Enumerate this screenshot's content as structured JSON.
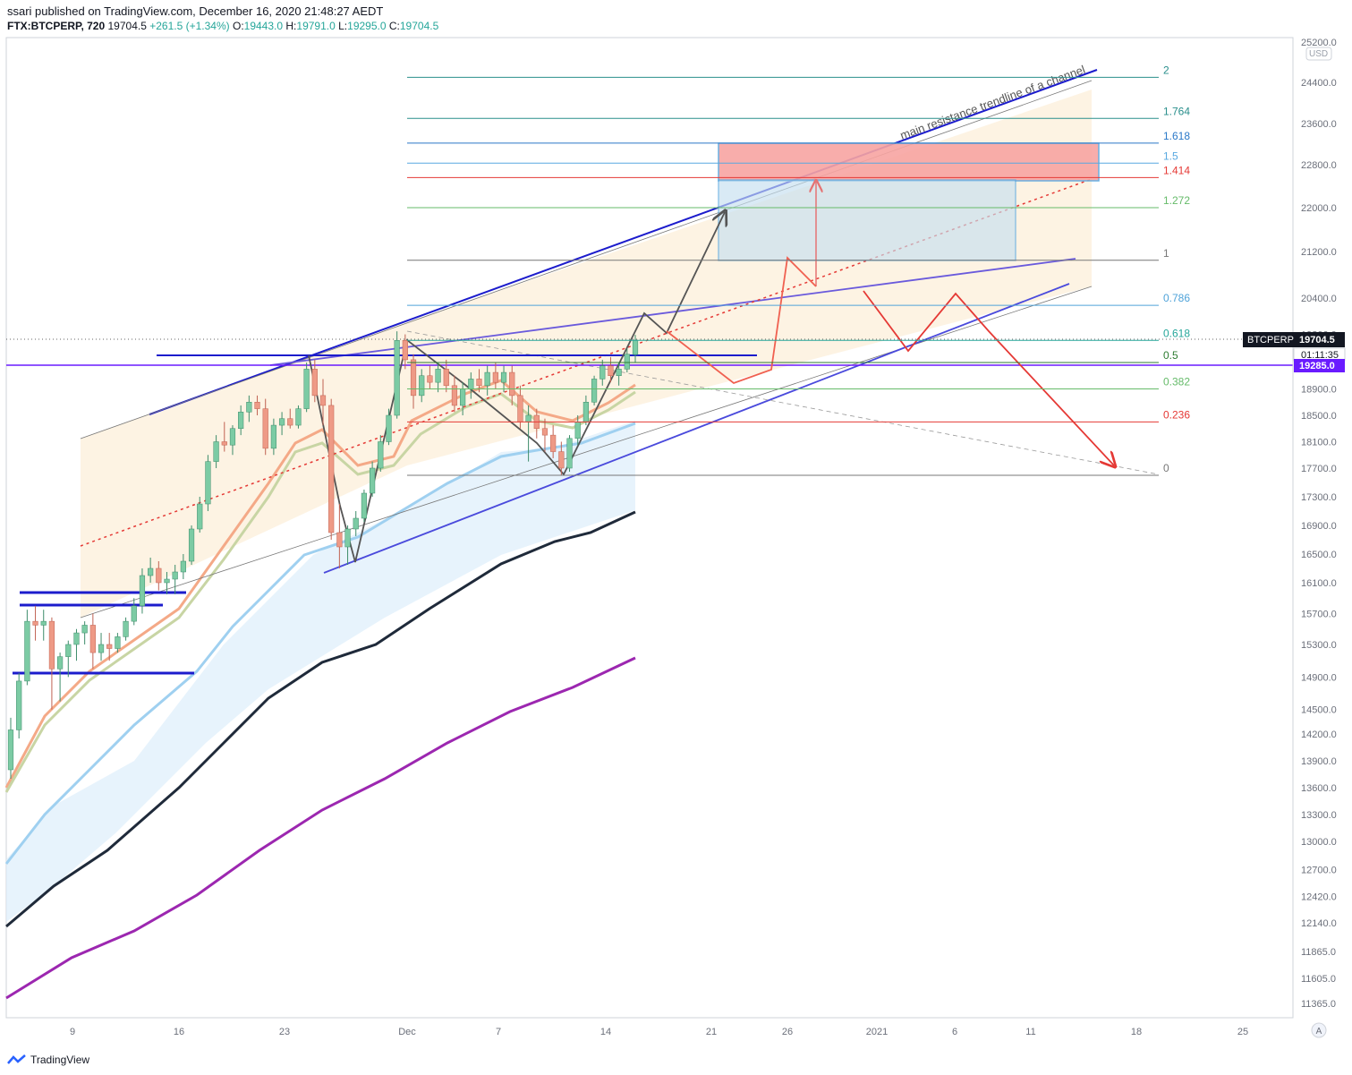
{
  "header": {
    "published": "ssari published on TradingView.com, December 16, 2020 21:48:27 AEDT",
    "symbol": "FTX:BTCPERP, 720",
    "last": "19704.5",
    "change": "+261.5 (+1.34%)",
    "open_label": "O:",
    "open": "19443.0",
    "high_label": "H:",
    "high": "19791.0",
    "low_label": "L:",
    "low": "19295.0",
    "close_label": "C:",
    "close": "19704.5"
  },
  "footer": {
    "brand": "TradingView"
  },
  "chart_data": {
    "type": "candlestick",
    "currency": "USD",
    "y_ticks": [
      "25200.0",
      "24400.0",
      "23600.0",
      "22800.0",
      "22000.0",
      "21200.0",
      "20400.0",
      "19800.0",
      "18900.0",
      "18500.0",
      "18100.0",
      "17700.0",
      "17300.0",
      "16900.0",
      "16500.0",
      "16100.0",
      "15700.0",
      "15300.0",
      "14900.0",
      "14500.0",
      "14200.0",
      "13900.0",
      "13600.0",
      "13300.0",
      "13000.0",
      "12700.0",
      "12420.0",
      "12140.0",
      "11865.0",
      "11605.0",
      "11365.0"
    ],
    "x_ticks": [
      "9",
      "16",
      "23",
      "Dec",
      "7",
      "14",
      "21",
      "26",
      "2021",
      "6",
      "11",
      "18",
      "25"
    ],
    "price_label": {
      "symbol": "BTCPERP",
      "value": "19704.5",
      "countdown": "01:11:35"
    },
    "line_label": {
      "value": "19285.0",
      "color": "#6a1bff"
    },
    "fib_levels": [
      {
        "level": "2",
        "price": 24500,
        "color": "#2a8f8c"
      },
      {
        "level": "1.764",
        "price": 23700,
        "color": "#2a8f8c"
      },
      {
        "level": "1.618",
        "price": 23220,
        "color": "#2a78c8"
      },
      {
        "level": "1.5",
        "price": 22830,
        "color": "#58a8e0"
      },
      {
        "level": "1.414",
        "price": 22560,
        "color": "#e53935"
      },
      {
        "level": "1.272",
        "price": 22000,
        "color": "#66bb6a"
      },
      {
        "level": "1",
        "price": 21050,
        "color": "#777777"
      },
      {
        "level": "0.786",
        "price": 20280,
        "color": "#4fa3d9"
      },
      {
        "level": "0.618",
        "price": 19700,
        "color": "#26a69a"
      },
      {
        "level": "0.5",
        "price": 19300,
        "color": "#2e7d32"
      },
      {
        "level": "0.382",
        "price": 18900,
        "color": "#66bb6a"
      },
      {
        "level": "0.236",
        "price": 18400,
        "color": "#e53935"
      },
      {
        "level": "0",
        "price": 17600,
        "color": "#777777"
      }
    ],
    "annotation": "main resistance trendline of a channel",
    "candles": [
      {
        "o": 13800,
        "h": 14400,
        "l": 13700,
        "c": 14250
      },
      {
        "o": 14250,
        "h": 14950,
        "l": 14150,
        "c": 14850
      },
      {
        "o": 14850,
        "h": 15750,
        "l": 14800,
        "c": 15600
      },
      {
        "o": 15600,
        "h": 15800,
        "l": 15350,
        "c": 15550
      },
      {
        "o": 15550,
        "h": 15750,
        "l": 15350,
        "c": 15600
      },
      {
        "o": 15600,
        "h": 15650,
        "l": 14500,
        "c": 15000
      },
      {
        "o": 15000,
        "h": 15200,
        "l": 14600,
        "c": 15150
      },
      {
        "o": 15150,
        "h": 15350,
        "l": 14900,
        "c": 15300
      },
      {
        "o": 15300,
        "h": 15500,
        "l": 15100,
        "c": 15450
      },
      {
        "o": 15450,
        "h": 15600,
        "l": 15300,
        "c": 15550
      },
      {
        "o": 15550,
        "h": 15700,
        "l": 15000,
        "c": 15200
      },
      {
        "o": 15200,
        "h": 15450,
        "l": 15100,
        "c": 15300
      },
      {
        "o": 15300,
        "h": 15450,
        "l": 15100,
        "c": 15250
      },
      {
        "o": 15250,
        "h": 15450,
        "l": 15200,
        "c": 15400
      },
      {
        "o": 15400,
        "h": 15650,
        "l": 15350,
        "c": 15600
      },
      {
        "o": 15600,
        "h": 15900,
        "l": 15550,
        "c": 15800
      },
      {
        "o": 15800,
        "h": 16300,
        "l": 15700,
        "c": 16200
      },
      {
        "o": 16200,
        "h": 16450,
        "l": 16100,
        "c": 16300
      },
      {
        "o": 16300,
        "h": 16400,
        "l": 16000,
        "c": 16100
      },
      {
        "o": 16100,
        "h": 16250,
        "l": 15950,
        "c": 16150
      },
      {
        "o": 16150,
        "h": 16350,
        "l": 15950,
        "c": 16250
      },
      {
        "o": 16250,
        "h": 16500,
        "l": 16150,
        "c": 16400
      },
      {
        "o": 16400,
        "h": 16900,
        "l": 16350,
        "c": 16850
      },
      {
        "o": 16850,
        "h": 17300,
        "l": 16800,
        "c": 17200
      },
      {
        "o": 17200,
        "h": 17900,
        "l": 17100,
        "c": 17800
      },
      {
        "o": 17800,
        "h": 18200,
        "l": 17700,
        "c": 18100
      },
      {
        "o": 18100,
        "h": 18400,
        "l": 17950,
        "c": 18050
      },
      {
        "o": 18050,
        "h": 18350,
        "l": 17900,
        "c": 18300
      },
      {
        "o": 18300,
        "h": 18650,
        "l": 18200,
        "c": 18550
      },
      {
        "o": 18550,
        "h": 18800,
        "l": 18400,
        "c": 18700
      },
      {
        "o": 18700,
        "h": 18800,
        "l": 18500,
        "c": 18600
      },
      {
        "o": 18600,
        "h": 18750,
        "l": 17900,
        "c": 18000
      },
      {
        "o": 18000,
        "h": 18450,
        "l": 17900,
        "c": 18350
      },
      {
        "o": 18350,
        "h": 18550,
        "l": 18200,
        "c": 18450
      },
      {
        "o": 18450,
        "h": 18600,
        "l": 18300,
        "c": 18350
      },
      {
        "o": 18350,
        "h": 18650,
        "l": 18300,
        "c": 18600
      },
      {
        "o": 18600,
        "h": 19300,
        "l": 18550,
        "c": 19200
      },
      {
        "o": 19200,
        "h": 19350,
        "l": 18700,
        "c": 18800
      },
      {
        "o": 18800,
        "h": 19050,
        "l": 18350,
        "c": 18650
      },
      {
        "o": 18650,
        "h": 18750,
        "l": 16700,
        "c": 16800
      },
      {
        "o": 16800,
        "h": 17200,
        "l": 16300,
        "c": 16600
      },
      {
        "o": 16600,
        "h": 16900,
        "l": 16350,
        "c": 16850
      },
      {
        "o": 16850,
        "h": 17100,
        "l": 16750,
        "c": 17000
      },
      {
        "o": 17000,
        "h": 17400,
        "l": 16950,
        "c": 17350
      },
      {
        "o": 17350,
        "h": 17800,
        "l": 17300,
        "c": 17700
      },
      {
        "o": 17700,
        "h": 18200,
        "l": 17650,
        "c": 18100
      },
      {
        "o": 18100,
        "h": 18600,
        "l": 18050,
        "c": 18500
      },
      {
        "o": 18500,
        "h": 19850,
        "l": 18450,
        "c": 19700
      },
      {
        "o": 19700,
        "h": 19800,
        "l": 19200,
        "c": 19350
      },
      {
        "o": 19350,
        "h": 19450,
        "l": 18600,
        "c": 18800
      },
      {
        "o": 18800,
        "h": 19200,
        "l": 18700,
        "c": 19100
      },
      {
        "o": 19100,
        "h": 19250,
        "l": 18900,
        "c": 19000
      },
      {
        "o": 19000,
        "h": 19300,
        "l": 18850,
        "c": 19200
      },
      {
        "o": 19200,
        "h": 19350,
        "l": 18850,
        "c": 18950
      },
      {
        "o": 18950,
        "h": 19100,
        "l": 18550,
        "c": 18650
      },
      {
        "o": 18650,
        "h": 19000,
        "l": 18500,
        "c": 18900
      },
      {
        "o": 18900,
        "h": 19150,
        "l": 18750,
        "c": 19050
      },
      {
        "o": 19050,
        "h": 19200,
        "l": 18850,
        "c": 18950
      },
      {
        "o": 18950,
        "h": 19250,
        "l": 18800,
        "c": 19150
      },
      {
        "o": 19150,
        "h": 19300,
        "l": 18900,
        "c": 19000
      },
      {
        "o": 19000,
        "h": 19250,
        "l": 18850,
        "c": 19150
      },
      {
        "o": 19150,
        "h": 19250,
        "l": 18650,
        "c": 18800
      },
      {
        "o": 18800,
        "h": 18950,
        "l": 18300,
        "c": 18400
      },
      {
        "o": 18400,
        "h": 18650,
        "l": 17800,
        "c": 18500
      },
      {
        "o": 18500,
        "h": 18600,
        "l": 18150,
        "c": 18300
      },
      {
        "o": 18300,
        "h": 18450,
        "l": 17950,
        "c": 18200
      },
      {
        "o": 18200,
        "h": 18350,
        "l": 17850,
        "c": 17950
      },
      {
        "o": 17950,
        "h": 18100,
        "l": 17600,
        "c": 17700
      },
      {
        "o": 17700,
        "h": 18200,
        "l": 17650,
        "c": 18150
      },
      {
        "o": 18150,
        "h": 18500,
        "l": 18050,
        "c": 18400
      },
      {
        "o": 18400,
        "h": 18800,
        "l": 18350,
        "c": 18700
      },
      {
        "o": 18700,
        "h": 19100,
        "l": 18650,
        "c": 19050
      },
      {
        "o": 19050,
        "h": 19350,
        "l": 18950,
        "c": 19250
      },
      {
        "o": 19250,
        "h": 19400,
        "l": 19000,
        "c": 19100
      },
      {
        "o": 19100,
        "h": 19300,
        "l": 18950,
        "c": 19200
      },
      {
        "o": 19200,
        "h": 19550,
        "l": 19150,
        "c": 19450
      },
      {
        "o": 19443,
        "h": 19791,
        "l": 19295,
        "c": 19704.5
      }
    ]
  }
}
